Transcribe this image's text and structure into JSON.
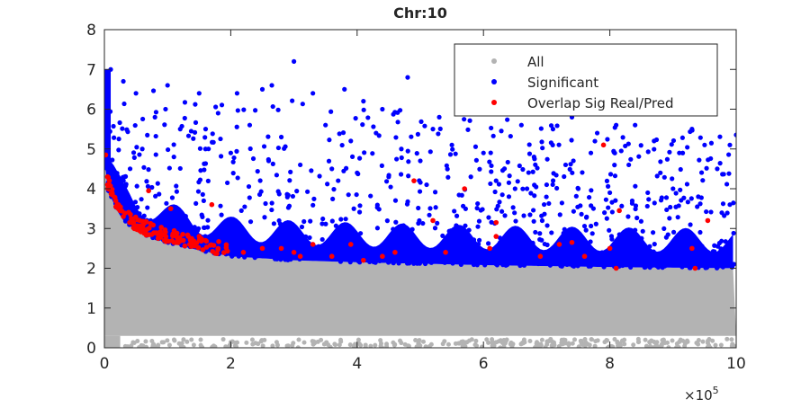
{
  "chart_data": {
    "type": "scatter",
    "title": "Chr:10",
    "xlabel": "",
    "ylabel": "",
    "x_exponent_label": "×10",
    "x_exponent": "5",
    "xlim": [
      0,
      10
    ],
    "ylim": [
      0,
      8
    ],
    "xticks": [
      "0",
      "2",
      "4",
      "6",
      "8",
      "10"
    ],
    "yticks": [
      "0",
      "1",
      "2",
      "3",
      "4",
      "5",
      "6",
      "7",
      "8"
    ],
    "grid": false,
    "legend_position": "top-right",
    "legend": [
      {
        "label": "All",
        "color": "#b3b3b3"
      },
      {
        "label": "Significant",
        "color": "#0000ff"
      },
      {
        "label": "Overlap Sig Real/Pred",
        "color": "#ff0000"
      }
    ],
    "significance_threshold": {
      "x": [
        0,
        0.05,
        0.1,
        0.2,
        0.3,
        0.5,
        0.7,
        1.0,
        1.5,
        2.0,
        3.0,
        4.0,
        6.0,
        8.0,
        10.0
      ],
      "y": [
        4.8,
        4.0,
        3.8,
        3.45,
        3.2,
        2.95,
        2.8,
        2.65,
        2.45,
        2.3,
        2.2,
        2.15,
        2.08,
        2.03,
        2.0
      ]
    },
    "all_lower_bound": 0.3,
    "significant_dense_band_height": 1.0,
    "significant_outliers": [
      [
        0.1,
        7.0
      ],
      [
        0.3,
        6.7
      ],
      [
        0.5,
        6.4
      ],
      [
        1.0,
        6.6
      ],
      [
        1.5,
        6.4
      ],
      [
        2.1,
        6.4
      ],
      [
        2.5,
        6.5
      ],
      [
        2.65,
        6.6
      ],
      [
        3.0,
        7.2
      ],
      [
        3.3,
        6.4
      ],
      [
        3.8,
        6.5
      ],
      [
        4.1,
        6.2
      ],
      [
        4.4,
        6.0
      ],
      [
        4.8,
        6.8
      ],
      [
        5.3,
        5.8
      ],
      [
        5.6,
        6.0
      ],
      [
        5.2,
        5.5
      ],
      [
        6.3,
        5.9
      ],
      [
        6.6,
        5.6
      ],
      [
        7.1,
        5.5
      ],
      [
        7.4,
        5.8
      ],
      [
        7.8,
        5.4
      ],
      [
        8.1,
        5.6
      ],
      [
        8.4,
        5.6
      ],
      [
        8.7,
        5.2
      ],
      [
        9.3,
        5.5
      ],
      [
        9.5,
        5.1
      ],
      [
        9.9,
        5.1
      ],
      [
        0.8,
        5.8
      ],
      [
        1.2,
        5.5
      ],
      [
        1.8,
        5.9
      ],
      [
        2.3,
        5.6
      ],
      [
        2.8,
        5.3
      ],
      [
        3.5,
        5.6
      ],
      [
        3.9,
        5.2
      ],
      [
        4.3,
        5.4
      ],
      [
        4.7,
        5.0
      ],
      [
        5.0,
        4.7
      ],
      [
        5.5,
        5.1
      ],
      [
        6.0,
        4.9
      ],
      [
        6.8,
        4.8
      ],
      [
        7.3,
        4.6
      ],
      [
        7.7,
        4.9
      ],
      [
        8.3,
        4.6
      ],
      [
        8.8,
        4.4
      ],
      [
        9.1,
        4.9
      ],
      [
        9.7,
        4.5
      ],
      [
        0.6,
        5.0
      ],
      [
        1.1,
        4.8
      ],
      [
        1.6,
        5.0
      ],
      [
        2.0,
        4.9
      ],
      [
        2.6,
        4.7
      ],
      [
        3.1,
        4.6
      ],
      [
        3.6,
        4.5
      ],
      [
        4.0,
        4.4
      ],
      [
        4.5,
        4.3
      ],
      [
        5.1,
        4.1
      ],
      [
        5.8,
        4.3
      ],
      [
        6.2,
        4.2
      ],
      [
        6.5,
        4.0
      ],
      [
        7.0,
        4.1
      ],
      [
        7.5,
        4.0
      ],
      [
        8.0,
        3.9
      ],
      [
        8.6,
        3.9
      ],
      [
        9.0,
        4.0
      ],
      [
        9.4,
        3.8
      ],
      [
        9.9,
        3.6
      ]
    ],
    "overlap_points": [
      [
        0.02,
        4.85
      ],
      [
        0.05,
        4.3
      ],
      [
        0.08,
        4.0
      ],
      [
        0.12,
        3.85
      ],
      [
        0.2,
        3.6
      ],
      [
        0.3,
        3.3
      ],
      [
        0.4,
        3.15
      ],
      [
        0.5,
        3.0
      ],
      [
        0.6,
        2.95
      ],
      [
        0.7,
        3.95
      ],
      [
        0.75,
        2.85
      ],
      [
        0.85,
        2.75
      ],
      [
        0.95,
        2.7
      ],
      [
        1.05,
        3.5
      ],
      [
        1.1,
        2.65
      ],
      [
        1.25,
        2.7
      ],
      [
        1.35,
        2.6
      ],
      [
        1.5,
        2.8
      ],
      [
        1.6,
        2.7
      ],
      [
        1.7,
        3.6
      ],
      [
        1.8,
        2.5
      ],
      [
        2.2,
        2.4
      ],
      [
        2.5,
        2.5
      ],
      [
        2.8,
        2.5
      ],
      [
        3.0,
        2.4
      ],
      [
        3.1,
        2.3
      ],
      [
        3.3,
        2.6
      ],
      [
        3.6,
        2.3
      ],
      [
        3.9,
        2.6
      ],
      [
        4.1,
        2.2
      ],
      [
        4.4,
        2.3
      ],
      [
        4.6,
        2.4
      ],
      [
        4.9,
        4.2
      ],
      [
        5.2,
        3.2
      ],
      [
        5.4,
        2.4
      ],
      [
        5.7,
        4.0
      ],
      [
        6.1,
        2.5
      ],
      [
        6.2,
        3.15
      ],
      [
        6.2,
        2.8
      ],
      [
        6.9,
        2.3
      ],
      [
        7.2,
        2.6
      ],
      [
        7.4,
        2.65
      ],
      [
        7.6,
        2.3
      ],
      [
        7.9,
        5.1
      ],
      [
        8.0,
        2.5
      ],
      [
        8.1,
        2.0
      ],
      [
        8.15,
        3.45
      ],
      [
        9.3,
        2.5
      ],
      [
        9.35,
        2.0
      ],
      [
        9.55,
        3.2
      ]
    ]
  }
}
